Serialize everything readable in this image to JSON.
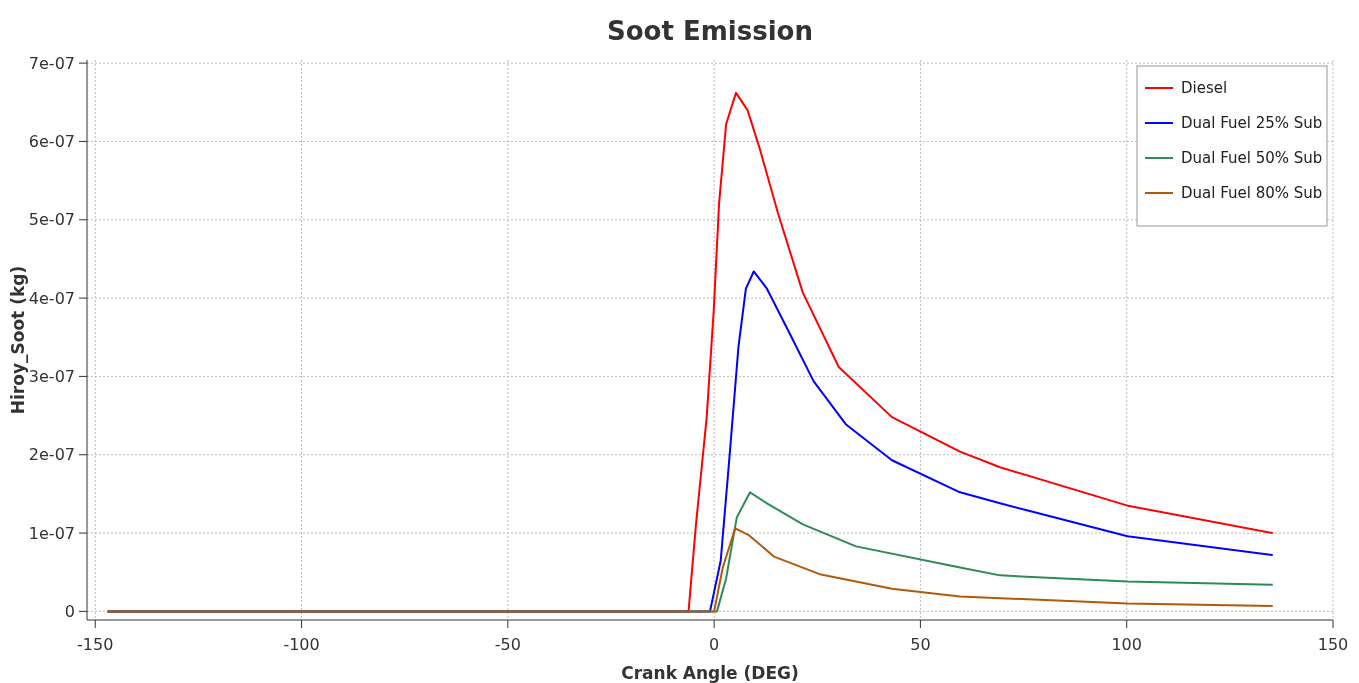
{
  "chart_data": {
    "type": "line",
    "title": "Soot Emission",
    "xlabel": "Crank Angle (DEG)",
    "ylabel": "Hiroy_Soot (kg)",
    "xlim": [
      -152,
      150
    ],
    "xticks": [
      -150,
      -100,
      -50,
      0,
      50,
      100,
      150
    ],
    "ylim": [
      -1.1e-08,
      7.04e-07
    ],
    "yticks": [
      {
        "value": 0,
        "label": "0"
      },
      {
        "value": 1e-07,
        "label": "1e-07"
      },
      {
        "value": 2e-07,
        "label": "2e-07"
      },
      {
        "value": 3e-07,
        "label": "3e-07"
      },
      {
        "value": 4e-07,
        "label": "4e-07"
      },
      {
        "value": 5e-07,
        "label": "5e-07"
      },
      {
        "value": 6e-07,
        "label": "6e-07"
      },
      {
        "value": 7e-07,
        "label": "7e-07"
      }
    ],
    "grid": true,
    "legend": "top right",
    "line_style": "solid",
    "marker": "none",
    "series": [
      {
        "name": "Diesel",
        "color": "#ff0000",
        "x": [
          -147,
          -6.2,
          -4.4,
          -1.8,
          -0.1,
          1.2,
          2.9,
          5.3,
          8.1,
          11.1,
          15.5,
          21.5,
          30.2,
          43.1,
          59.6,
          69.3,
          100.2,
          135.4
        ],
        "values": [
          0,
          0,
          1.11e-07,
          2.48e-07,
          3.84e-07,
          5.21e-07,
          6.22e-07,
          6.62e-07,
          6.4e-07,
          5.9e-07,
          5.08e-07,
          4.07e-07,
          3.12e-07,
          2.48e-07,
          2.04e-07,
          1.84e-07,
          1.35e-07,
          1e-07
        ]
      },
      {
        "name": "Dual Fuel 25% Sub",
        "color": "#0000ff",
        "x": [
          -147,
          -1,
          1.6,
          3.8,
          5.9,
          7.7,
          9.6,
          12.8,
          18.1,
          24.1,
          31.9,
          43.1,
          59.6,
          69.3,
          100.2,
          135.4
        ],
        "values": [
          0,
          0,
          6.5e-08,
          2.02e-07,
          3.38e-07,
          4.12e-07,
          4.34e-07,
          4.12e-07,
          3.57e-07,
          2.94e-07,
          2.39e-07,
          1.93e-07,
          1.52e-07,
          1.38e-07,
          9.6e-08,
          7.2e-08
        ]
      },
      {
        "name": "Dual Fuel 50% Sub",
        "color": "#2e8b57",
        "x": [
          -147,
          0.7,
          2.9,
          5.5,
          8.7,
          12.8,
          21.5,
          34.4,
          59.6,
          69.3,
          100.2,
          135.4
        ],
        "values": [
          0,
          0,
          4.2e-08,
          1.2e-07,
          1.52e-07,
          1.38e-07,
          1.11e-07,
          8.3e-08,
          5.6e-08,
          4.6e-08,
          3.8e-08,
          3.4e-08
        ]
      },
      {
        "name": "Dual Fuel 80% Sub",
        "color": "#b05a10",
        "x": [
          -147,
          0,
          2.1,
          5.1,
          8.5,
          14.5,
          25.9,
          43.1,
          59.6,
          100.2,
          135.4
        ],
        "values": [
          0,
          0,
          5.6e-08,
          1.06e-07,
          9.7e-08,
          7e-08,
          4.7e-08,
          2.9e-08,
          1.9e-08,
          1e-08,
          7e-09
        ]
      }
    ]
  }
}
